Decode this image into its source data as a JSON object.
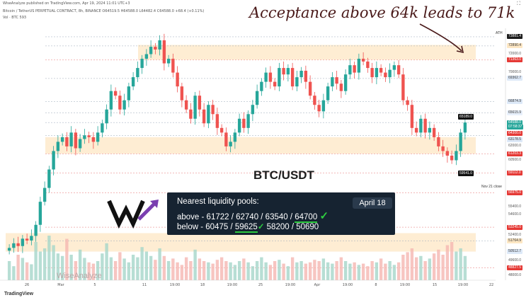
{
  "header": {
    "line1": "WiseAnalyze published on TradingView.com, Apr 19, 2024 11:01 UTC+3",
    "line2": "Bitcoin / TetherUS PERPETUAL CONTRACT, 8h, BINANCE O64519.5 H64588.0 L64482.4 C64588.0 +68.4 (+0.11%)",
    "line3": "Vol · BTC 593"
  },
  "annotation": "Acceptance above 64k leads to 71k",
  "pair_label": "BTC/USDT",
  "info_box": {
    "heading": "Nearest liquidity pools:",
    "above": "above - 61722 / 62740 / 63540 / 64700",
    "above_prefix": "above - 61722 / 62740 / 63540 / ",
    "above_ul": "64700",
    "below_prefix": "below - 60475 / ",
    "below_ul": "59625",
    "below_rest": " 58200 / 50690",
    "date": "April 18",
    "check": "✓"
  },
  "watermark": "WiseAnalyze",
  "footer": "TradingView",
  "ath_label": "ATH",
  "nov_label": "Nov 21 close",
  "flags": {
    "high": "65189.0",
    "low": "59541.0"
  },
  "price_tags": [
    {
      "text": "73881.4",
      "price": 73881.4,
      "bg": "#1b1b1b",
      "fg": "#ffffff"
    },
    {
      "text": "72890.4",
      "price": 72890.4,
      "bg": "#fde7c4",
      "fg": "#333333"
    },
    {
      "text": "72000.0",
      "price": 72000.0,
      "bg": "#ffffff",
      "fg": "#555555"
    },
    {
      "text": "71363.0",
      "price": 71363.0,
      "bg": "#e53935",
      "fg": "#ffffff"
    },
    {
      "text": "70000.0",
      "price": 70000.0,
      "bg": "#ffffff",
      "fg": "#555555"
    },
    {
      "text": "69362.7",
      "price": 69362.7,
      "bg": "#dde9f8",
      "fg": "#333333"
    },
    {
      "text": "66874.9",
      "price": 66874.9,
      "bg": "#dde9f8",
      "fg": "#333333"
    },
    {
      "text": "65615.9",
      "price": 65615.9,
      "bg": "#e8f0fb",
      "fg": "#333333"
    },
    {
      "text": "64588.0",
      "price": 64588.0,
      "bg": "#26a69a",
      "fg": "#ffffff"
    },
    {
      "text": "07:58:37",
      "price": 64100.0,
      "bg": "#26a69a",
      "fg": "#ffffff"
    },
    {
      "text": "64300.0",
      "price": 63400.0,
      "bg": "#e53935",
      "fg": "#ffffff"
    },
    {
      "text": "63178.5",
      "price": 62700.0,
      "bg": "#dde9f8",
      "fg": "#333333"
    },
    {
      "text": "62000.0",
      "price": 62000.0,
      "bg": "#ffffff",
      "fg": "#555555"
    },
    {
      "text": "61203.3",
      "price": 61203.3,
      "bg": "#e53935",
      "fg": "#ffffff"
    },
    {
      "text": "60500.0",
      "price": 60500.0,
      "bg": "#ffffff",
      "fg": "#555555"
    },
    {
      "text": "59112.0",
      "price": 59112.0,
      "bg": "#e53935",
      "fg": "#ffffff"
    },
    {
      "text": "56975.0",
      "price": 56975.0,
      "bg": "#e53935",
      "fg": "#ffffff"
    },
    {
      "text": "55400.0",
      "price": 55400.0,
      "bg": "#ffffff",
      "fg": "#555555"
    },
    {
      "text": "54600.0",
      "price": 54600.0,
      "bg": "#ffffff",
      "fg": "#555555"
    },
    {
      "text": "53245.0",
      "price": 53245.0,
      "bg": "#e53935",
      "fg": "#ffffff"
    },
    {
      "text": "52400.0",
      "price": 52400.0,
      "bg": "#ffffff",
      "fg": "#555555"
    },
    {
      "text": "51764.9",
      "price": 51764.9,
      "bg": "#fde7c4",
      "fg": "#333333"
    },
    {
      "text": "50512.7",
      "price": 50600.0,
      "bg": "#dde9f8",
      "fg": "#333333"
    },
    {
      "text": "49600.0",
      "price": 49600.0,
      "bg": "#ffffff",
      "fg": "#555555"
    },
    {
      "text": "48827.5",
      "price": 48827.5,
      "bg": "#e53935",
      "fg": "#ffffff"
    },
    {
      "text": "48000.0",
      "price": 48000.0,
      "bg": "#ffffff",
      "fg": "#555555"
    }
  ],
  "chart_data": {
    "type": "candlestick",
    "title": "BTC/USDT",
    "ylim": [
      47500,
      74800
    ],
    "x_ticks": [
      "26",
      "Mar",
      "5",
      "11",
      "19:00",
      "18",
      "19:00",
      "25",
      "19:00",
      "Apr",
      "19:00",
      "8",
      "19:00",
      "15",
      "19:00",
      "22"
    ],
    "zones": [
      {
        "from": 71400,
        "to": 73000,
        "color": "#fde7c4"
      },
      {
        "from": 61200,
        "to": 63000,
        "color": "#fde7c4"
      },
      {
        "from": 50600,
        "to": 52600,
        "color": "#fde7c4"
      }
    ],
    "levels": [
      73881.4,
      72890.4,
      71363.0,
      69362.7,
      66874.9,
      65615.9,
      64588.0,
      63178.5,
      61203.3,
      59112.0,
      56975.0,
      53245.0,
      51764.9,
      48827.5
    ],
    "series": [
      {
        "name": "BTC/USDT 8h close",
        "values": [
          51000,
          51500,
          51200,
          52000,
          51800,
          52300,
          53500,
          56000,
          57500,
          59500,
          61500,
          62500,
          63000,
          62000,
          63500,
          61800,
          62800,
          63200,
          63000,
          62500,
          63500,
          64500,
          66000,
          68000,
          67500,
          66000,
          67000,
          68500,
          69500,
          70500,
          71500,
          72000,
          72800,
          72500,
          73500,
          71000,
          71500,
          70000,
          68500,
          67000,
          66000,
          65000,
          67500,
          66000,
          64500,
          66500,
          65500,
          64000,
          63500,
          62000,
          62500,
          63500,
          65000,
          64000,
          65500,
          66500,
          68000,
          69000,
          70000,
          69000,
          68500,
          70500,
          69800,
          70500,
          68500,
          69500,
          70200,
          69000,
          67500,
          66500,
          65800,
          67000,
          68500,
          69500,
          68800,
          68000,
          69800,
          70800,
          70000,
          71500,
          71200,
          70500,
          69500,
          70500,
          70000,
          69500,
          70300,
          70800,
          69800,
          67000,
          66500,
          64000,
          63500,
          65000,
          63500,
          64000,
          63000,
          62000,
          61500,
          61000,
          60500,
          61500,
          63500,
          64588
        ]
      }
    ],
    "volume": [
      30,
      22,
      40,
      35,
      28,
      25,
      60,
      45,
      50,
      70,
      55,
      42,
      38,
      65,
      40,
      30,
      48,
      35,
      28,
      26,
      30,
      42,
      58,
      36,
      30,
      44,
      34,
      28,
      40,
      36,
      52,
      45,
      38,
      32,
      50,
      38,
      30,
      34,
      28,
      24,
      36,
      30,
      48,
      34,
      30,
      28,
      26,
      32,
      36,
      30,
      28,
      24,
      30,
      34,
      28,
      22,
      30,
      36,
      28,
      24,
      30,
      32,
      26,
      22,
      36,
      28,
      30,
      26,
      28,
      32,
      30,
      34,
      28,
      26,
      30,
      36,
      30,
      26,
      28,
      24,
      26,
      22,
      30,
      28,
      34,
      26,
      30,
      24,
      28,
      40,
      44,
      50,
      36,
      38,
      30,
      34,
      42,
      48,
      40,
      55,
      60,
      45,
      50,
      38
    ]
  }
}
